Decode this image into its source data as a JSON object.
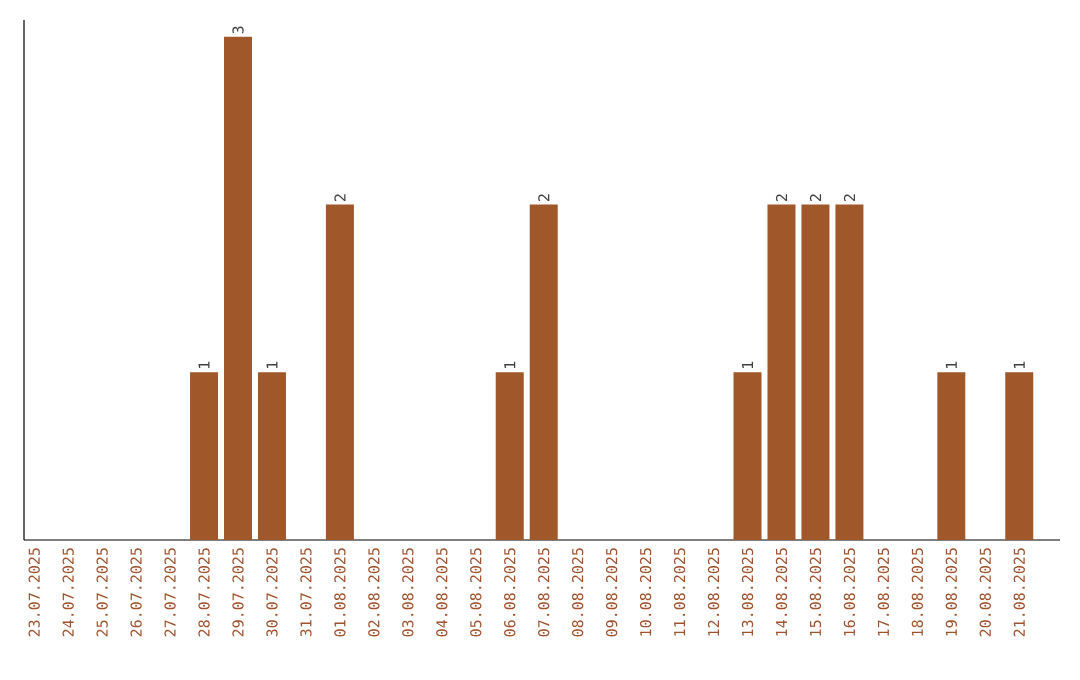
{
  "chart_data": {
    "type": "bar",
    "categories": [
      "23.07.2025",
      "24.07.2025",
      "25.07.2025",
      "26.07.2025",
      "27.07.2025",
      "28.07.2025",
      "29.07.2025",
      "30.07.2025",
      "31.07.2025",
      "01.08.2025",
      "02.08.2025",
      "03.08.2025",
      "04.08.2025",
      "05.08.2025",
      "06.08.2025",
      "07.08.2025",
      "08.08.2025",
      "09.08.2025",
      "10.08.2025",
      "11.08.2025",
      "12.08.2025",
      "13.08.2025",
      "14.08.2025",
      "15.08.2025",
      "16.08.2025",
      "17.08.2025",
      "18.08.2025",
      "19.08.2025",
      "20.08.2025",
      "21.08.2025"
    ],
    "values": [
      0,
      0,
      0,
      0,
      0,
      1,
      3,
      1,
      0,
      2,
      0,
      0,
      0,
      0,
      1,
      2,
      0,
      0,
      0,
      0,
      0,
      1,
      2,
      2,
      2,
      0,
      0,
      1,
      0,
      1
    ],
    "value_labels": [
      null,
      null,
      null,
      null,
      null,
      "1",
      "3",
      "1",
      null,
      "2",
      null,
      null,
      null,
      null,
      "1",
      "2",
      null,
      null,
      null,
      null,
      null,
      "1",
      "2",
      "2",
      "2",
      null,
      null,
      "1",
      null,
      "1"
    ],
    "color": "#a0582a",
    "ylim": [
      0,
      3.1
    ],
    "tick_labels": "x"
  }
}
